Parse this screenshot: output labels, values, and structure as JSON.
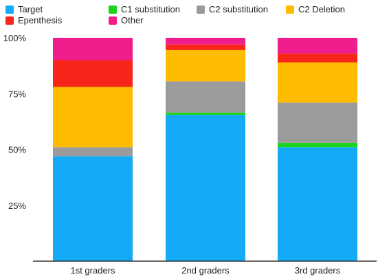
{
  "chart_data": {
    "type": "bar",
    "stacked": true,
    "percent": true,
    "categories": [
      "1st graders",
      "2nd graders",
      "3rd graders"
    ],
    "series": [
      {
        "name": "Target",
        "color": "#14AAF5",
        "values": [
          47,
          65.5,
          51
        ]
      },
      {
        "name": "C1 substitution",
        "color": "#1CD41C",
        "values": [
          0,
          1,
          2
        ]
      },
      {
        "name": "C2 substitution",
        "color": "#9B9B9B",
        "values": [
          4,
          14,
          18
        ]
      },
      {
        "name": "C2 Deletion",
        "color": "#FFBB00",
        "values": [
          27,
          14,
          18
        ]
      },
      {
        "name": "Epenthesis",
        "color": "#F8251A",
        "values": [
          12,
          2.5,
          4
        ]
      },
      {
        "name": "Other",
        "color": "#F01E8C",
        "values": [
          10,
          3,
          7
        ]
      }
    ],
    "ylim": [
      0,
      100
    ],
    "yticks": [
      "25%",
      "50%",
      "75%",
      "100%"
    ],
    "ytick_values": [
      25,
      50,
      75,
      100
    ],
    "grid": false,
    "legend_position": "top-left"
  }
}
